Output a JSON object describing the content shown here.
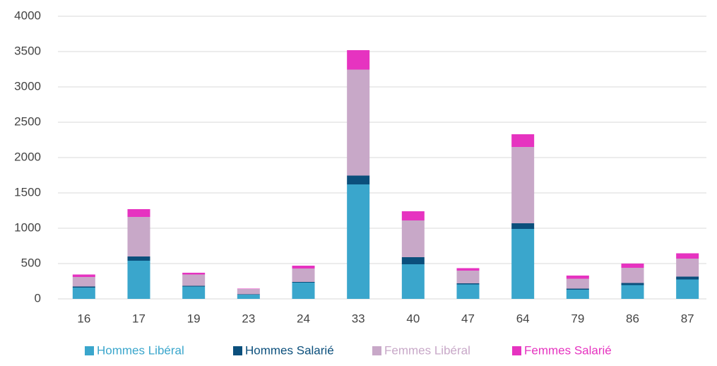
{
  "chart_data": {
    "type": "stacked_bar",
    "categories": [
      "16",
      "17",
      "19",
      "23",
      "24",
      "33",
      "40",
      "47",
      "64",
      "79",
      "86",
      "87"
    ],
    "series": [
      {
        "name": "Hommes Libéral",
        "color": "#3aa6cc",
        "values": [
          160,
          540,
          175,
          60,
          230,
          1620,
          490,
          205,
          990,
          130,
          195,
          275
        ]
      },
      {
        "name": "Hommes Salarié",
        "color": "#0b4f7c",
        "values": [
          15,
          60,
          10,
          5,
          10,
          125,
          100,
          15,
          80,
          15,
          30,
          40
        ]
      },
      {
        "name": "Femmes Libéral",
        "color": "#c8a8c8",
        "values": [
          135,
          560,
          160,
          75,
          190,
          1500,
          520,
          180,
          1080,
          140,
          215,
          255
        ]
      },
      {
        "name": "Femmes Salarié",
        "color": "#e633c0",
        "values": [
          35,
          110,
          25,
          5,
          40,
          275,
          130,
          35,
          180,
          45,
          60,
          75
        ]
      }
    ],
    "ylim": [
      0,
      4000
    ],
    "yticks": [
      0,
      500,
      1000,
      1500,
      2000,
      2500,
      3000,
      3500,
      4000
    ],
    "grid": true,
    "legend": "bottom"
  }
}
